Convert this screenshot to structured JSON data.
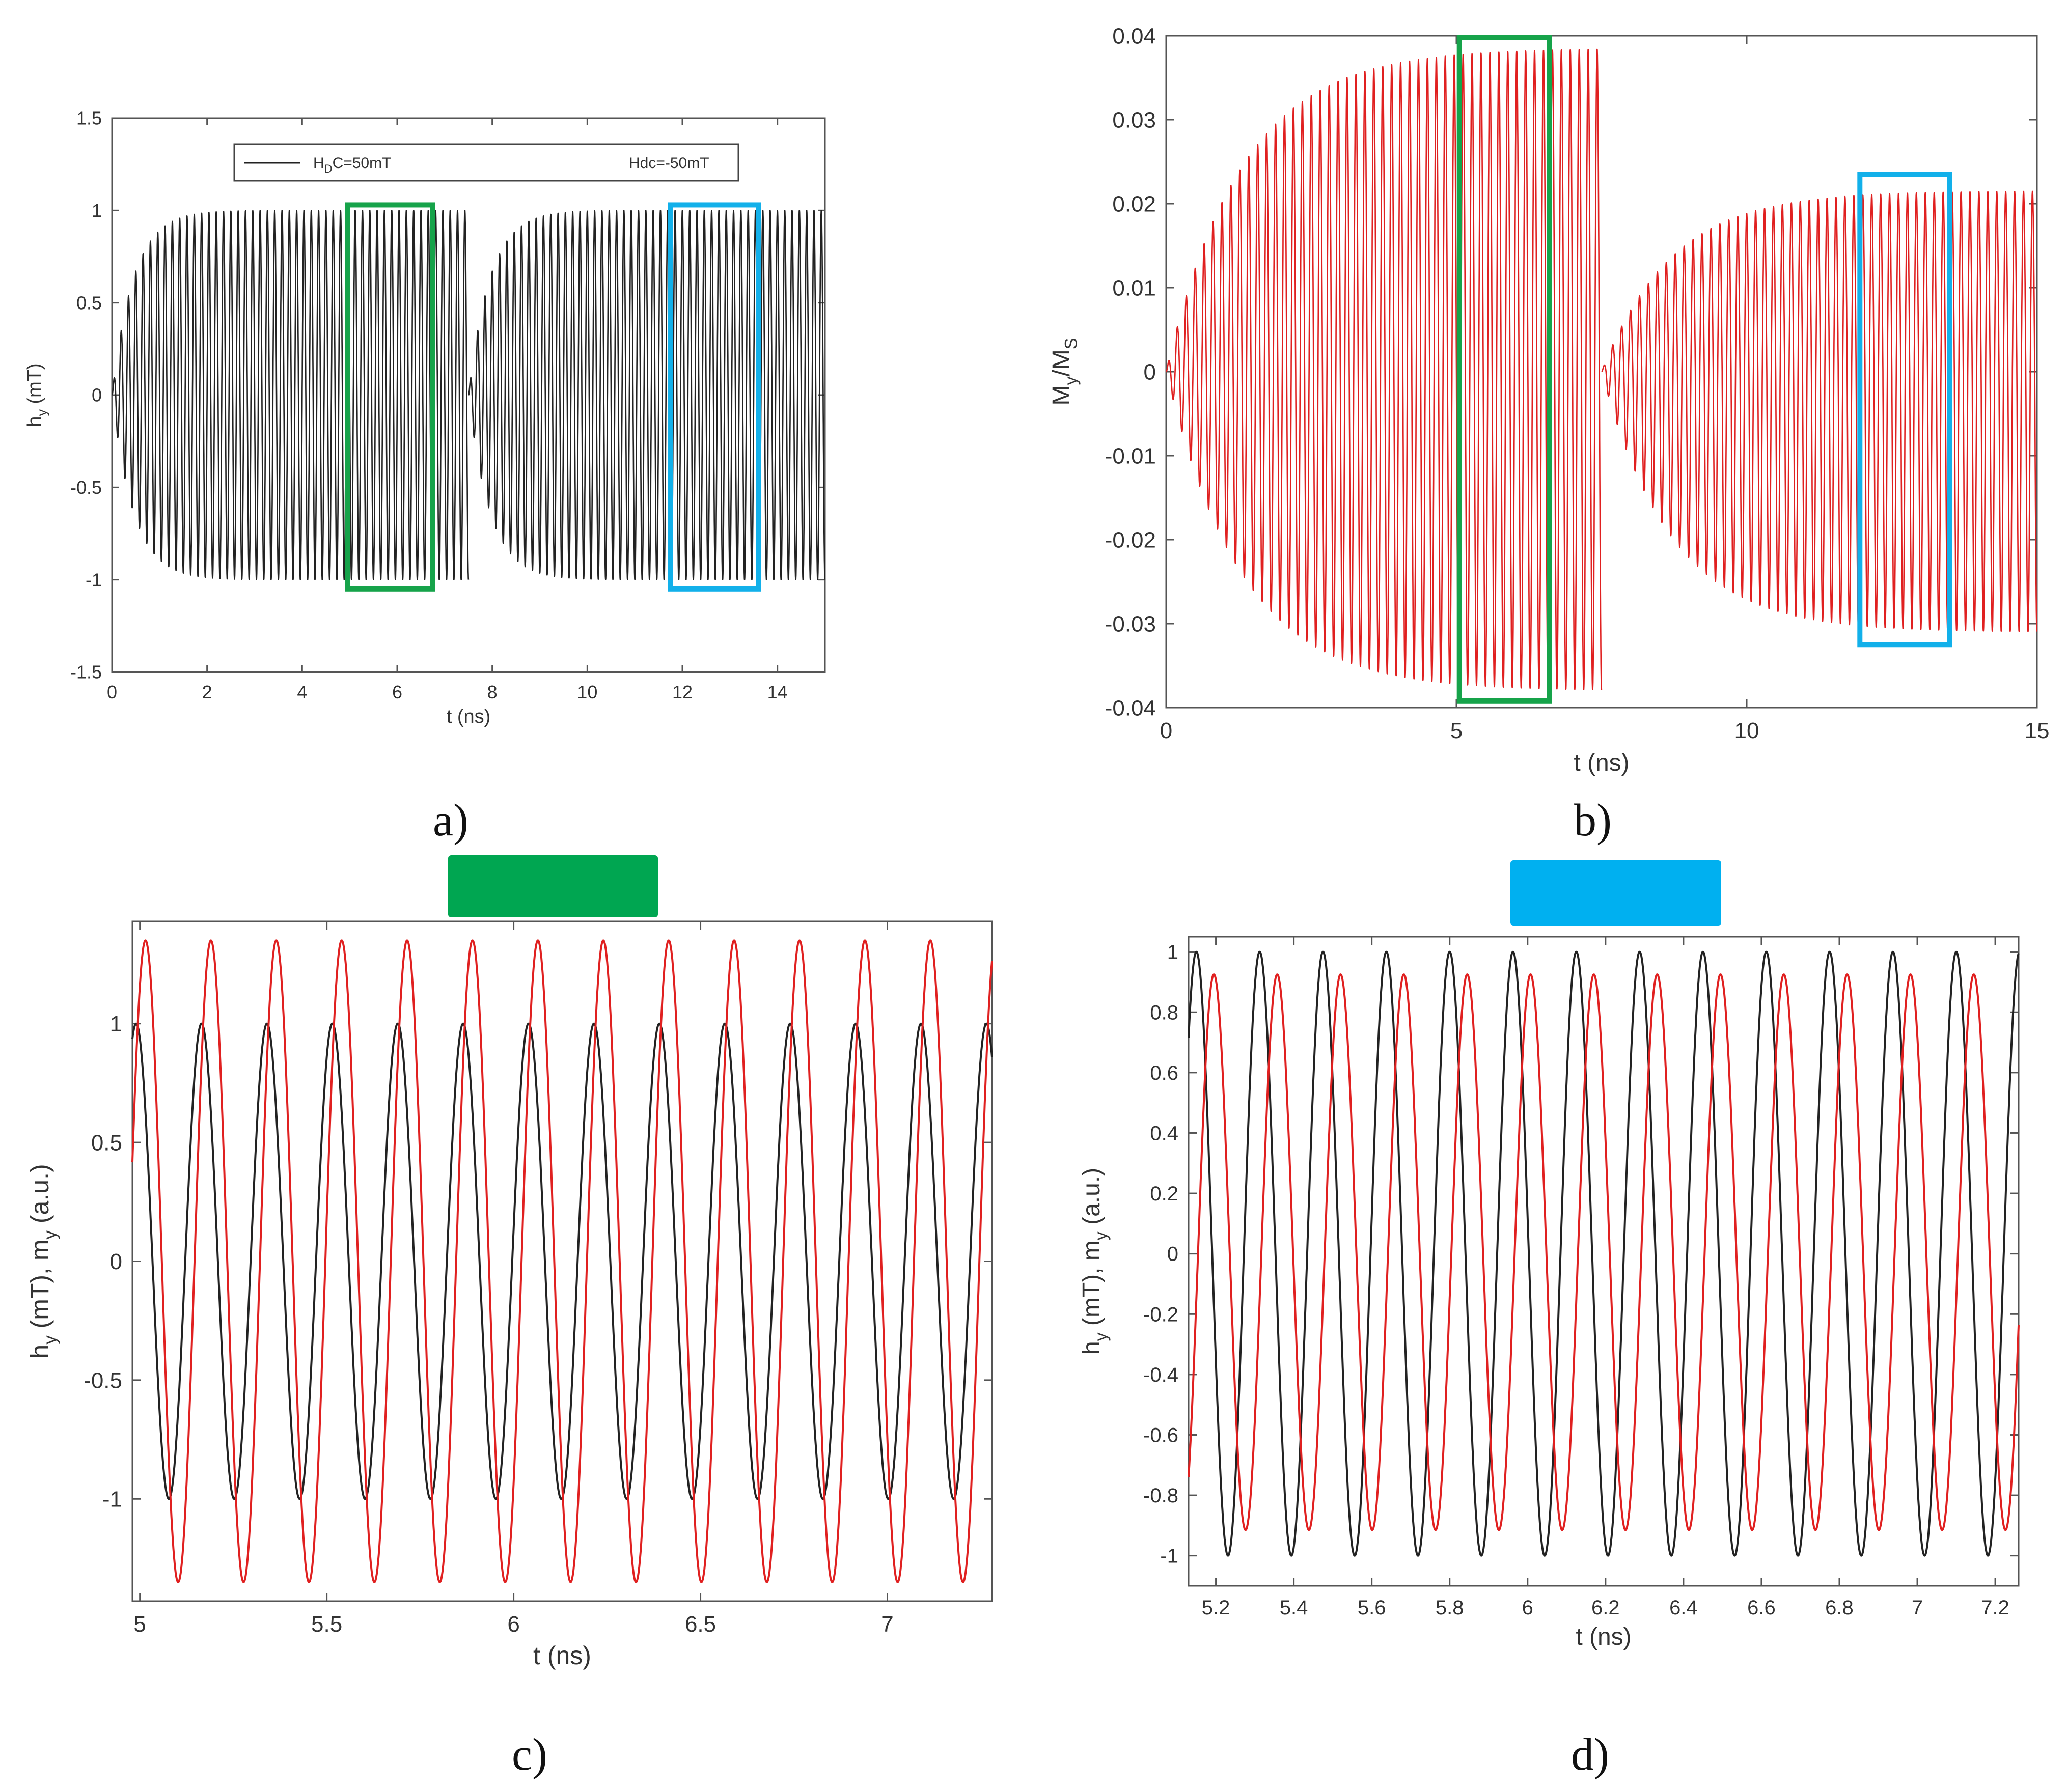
{
  "panel_labels": [
    "a)",
    "b)",
    "c)",
    "d)"
  ],
  "colors": {
    "black_signal": "#222222",
    "red_signal": "#e02020",
    "green_box": "#16a34a",
    "cyan_box": "#12b0ea",
    "green_swatch": "#00a651",
    "cyan_swatch": "#00b0f0"
  },
  "chart_data": [
    {
      "id": "a",
      "type": "line",
      "xlabel": "t (ns)",
      "ylabel_main": "h",
      "ylabel_sub": "y",
      "ylabel_rest": " (mT)",
      "xlim": [
        0,
        15
      ],
      "ylim": [
        -1.5,
        1.5
      ],
      "xticks": [
        0,
        2,
        4,
        6,
        8,
        10,
        12,
        14
      ],
      "xtick_labels": [
        "0",
        "2",
        "4",
        "6",
        "8",
        "10",
        "12",
        "14"
      ],
      "yticks": [
        -1.5,
        -1,
        -0.5,
        0,
        0.5,
        1,
        1.5
      ],
      "ytick_labels": [
        "-1.5",
        "-1",
        "-0.5",
        "0",
        "0.5",
        "1",
        "1.5"
      ],
      "legend": {
        "entry1_main": "H",
        "entry1_sub": "D",
        "entry1_rest": "C=50mT",
        "entry2": "Hdc=-50mT"
      },
      "series": [
        {
          "name": "H_DC=50mT",
          "t_start": 0,
          "t_end": 7.5,
          "amplitude": 1.0,
          "frequency_ghz": 6.5,
          "rise_time_ns": 0.45
        },
        {
          "name": "Hdc=-50mT",
          "t_start": 7.5,
          "t_end": 15,
          "amplitude": 1.0,
          "frequency_ghz": 6.5,
          "rise_time_ns": 0.45
        }
      ],
      "highlight_boxes": [
        {
          "color": "green",
          "x": [
            4.95,
            6.75
          ],
          "y": [
            -1.05,
            1.03
          ]
        },
        {
          "color": "cyan",
          "x": [
            11.75,
            13.6
          ],
          "y": [
            -1.05,
            1.03
          ]
        }
      ]
    },
    {
      "id": "b",
      "type": "line",
      "xlabel": "t (ns)",
      "ylabel_main": "M",
      "ylabel_sub": "y",
      "ylabel_mid": "/M",
      "ylabel_sub2": "S",
      "xlim": [
        0,
        15
      ],
      "ylim": [
        -0.04,
        0.04
      ],
      "xticks": [
        0,
        5,
        10,
        15
      ],
      "xtick_labels": [
        "0",
        "5",
        "10",
        "15"
      ],
      "yticks": [
        -0.04,
        -0.03,
        -0.02,
        -0.01,
        0,
        0.01,
        0.02,
        0.03,
        0.04
      ],
      "ytick_labels": [
        "-0.04",
        "-0.03",
        "-0.02",
        "-0.01",
        "0",
        "0.01",
        "0.02",
        "0.03",
        "0.04"
      ],
      "series": [
        {
          "name": "My/Ms (H_DC=50mT)",
          "t_start": 0,
          "t_end": 7.5,
          "peak_max": 0.0385,
          "peak_min": -0.038,
          "frequency_ghz": 6.5,
          "rise_time_ns": 1.3
        },
        {
          "name": "My/Ms (Hdc=-50mT)",
          "t_start": 7.5,
          "t_end": 15,
          "peak_max": 0.0215,
          "peak_min": -0.031,
          "frequency_ghz": 6.5,
          "rise_time_ns": 1.2
        }
      ],
      "highlight_boxes": [
        {
          "color": "green",
          "x": [
            5.05,
            6.6
          ],
          "y": [
            -0.0392,
            0.0398
          ]
        },
        {
          "color": "cyan",
          "x": [
            11.95,
            13.5
          ],
          "y": [
            -0.0325,
            0.0235
          ]
        }
      ]
    },
    {
      "id": "c",
      "type": "line",
      "xlabel": "t (ns)",
      "ylabel_main": "h",
      "ylabel_sub": "y",
      "ylabel_mid": " (mT), m",
      "ylabel_sub2": "y",
      "ylabel_rest": " (a.u.)",
      "xlim": [
        4.98,
        7.28
      ],
      "ylim": [
        -1.43,
        1.43
      ],
      "xticks": [
        5,
        5.5,
        6,
        6.5,
        7
      ],
      "xtick_labels": [
        "5",
        "5.5",
        "6",
        "6.5",
        "7"
      ],
      "yticks": [
        -1,
        -0.5,
        0,
        0.5,
        1
      ],
      "ytick_labels": [
        "-1",
        "-0.5",
        "0",
        "0.5",
        "1"
      ],
      "header_swatch": "green",
      "series": [
        {
          "name": "h_y",
          "color": "black",
          "amplitude": 1.0,
          "period_ns": 0.175,
          "peak_time_ns": 5.165
        },
        {
          "name": "m_y",
          "color": "red",
          "amplitude": 1.35,
          "period_ns": 0.175,
          "peak_time_ns": 5.015
        }
      ]
    },
    {
      "id": "d",
      "type": "line",
      "xlabel": "t (ns)",
      "ylabel_main": "h",
      "ylabel_sub": "y",
      "ylabel_mid": " (mT), m",
      "ylabel_sub2": "y",
      "ylabel_rest": " (a.u.)",
      "xlim": [
        5.13,
        7.26
      ],
      "ylim": [
        -1.1,
        1.05
      ],
      "xticks": [
        5.2,
        5.4,
        5.6,
        5.8,
        6,
        6.2,
        6.4,
        6.6,
        6.8,
        7,
        7.2
      ],
      "xtick_labels": [
        "5.2",
        "5.4",
        "5.6",
        "5.8",
        "6",
        "6.2",
        "6.4",
        "6.6",
        "6.8",
        "7",
        "7.2"
      ],
      "yticks": [
        -1,
        -0.8,
        -0.6,
        -0.4,
        -0.2,
        0,
        0.2,
        0.4,
        0.6,
        0.8,
        1
      ],
      "ytick_labels": [
        "-1",
        "-0.8",
        "-0.6",
        "-0.4",
        "-0.2",
        "0",
        "0.2",
        "0.4",
        "0.6",
        "0.8",
        "1"
      ],
      "header_swatch": "cyan",
      "series": [
        {
          "name": "h_y",
          "color": "black",
          "amplitude": 1.0,
          "period_ns": 0.1625,
          "peak_time_ns": 5.15
        },
        {
          "name": "m_y",
          "color": "red",
          "amplitude": 0.92,
          "offset": 0.005,
          "period_ns": 0.1625,
          "peak_time_ns": 5.195
        }
      ]
    }
  ]
}
